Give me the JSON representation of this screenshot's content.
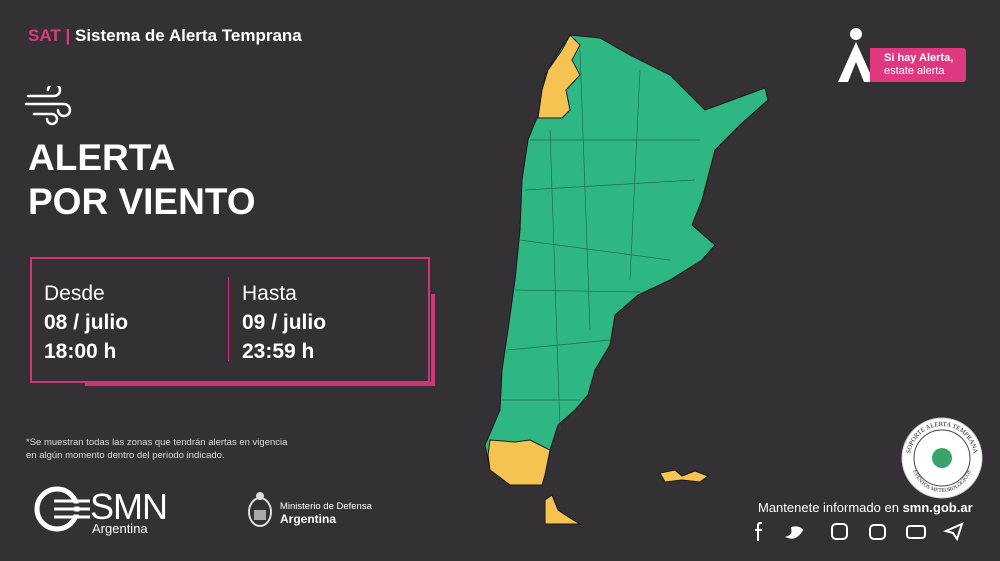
{
  "header": {
    "brand": "SAT",
    "separator": "|",
    "system": "Sistema de Alerta Temprana"
  },
  "badge": {
    "line1": "Si hay Alerta,",
    "line2": "estate alerta"
  },
  "alert": {
    "title_line1": "ALERTA",
    "title_line2": "POR VIENTO"
  },
  "period": {
    "from": {
      "label": "Desde",
      "date": "08 / julio",
      "time": "18:00 h"
    },
    "to": {
      "label": "Hasta",
      "date": "09 / julio",
      "time": "23:59 h"
    }
  },
  "note": "*Se muestran todas las zonas que tendrán alertas en vigencia en algún momento dentro del periodo indicado.",
  "footer": {
    "smn": "SMN",
    "smn_country": "Argentina",
    "ministry": "Ministerio de Defensa",
    "ministry_country": "Argentina",
    "info_text": "Mantenete informado en",
    "info_url": "smn.gob.ar"
  },
  "seal": {
    "top": "SOPORTE ALERTA TEMPRANA",
    "bottom": "EVENTOS METEOROLÓGICOS"
  }
}
